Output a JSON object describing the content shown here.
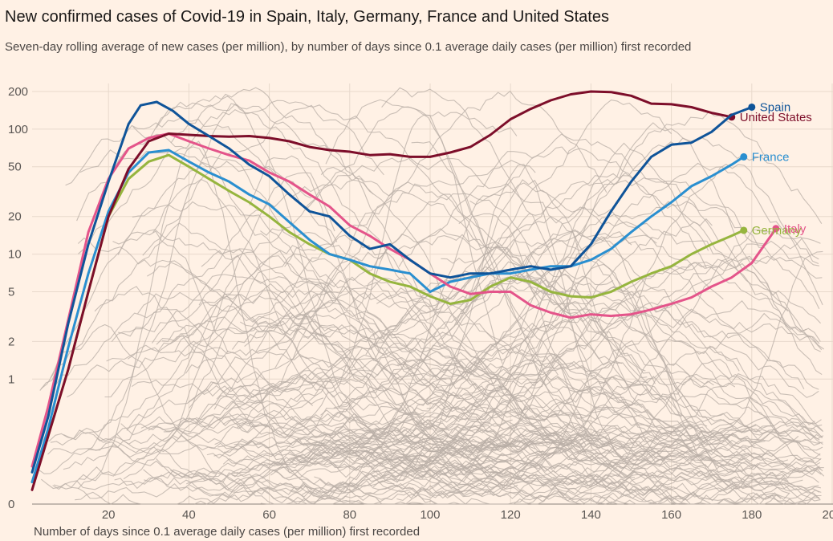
{
  "title": "New confirmed cases of Covid-19 in Spain, Italy, Germany, France and United States",
  "subtitle": "Seven-day rolling average of new cases (per million), by number of days since 0.1 average daily cases (per million) first recorded",
  "chart_data": {
    "type": "line",
    "title": "New confirmed cases of Covid-19 in Spain, Italy, Germany, France and United States",
    "subtitle": "Seven-day rolling average of new cases (per million), by number of days since 0.1 average daily cases (per million) first recorded",
    "xlabel": "Number of days since 0.1 average daily cases (per million) first recorded",
    "ylabel": "",
    "y_scale": "log",
    "xlim": [
      1,
      200
    ],
    "ylim": [
      0.1,
      200
    ],
    "x_ticks": [
      20,
      40,
      60,
      80,
      100,
      120,
      140,
      160,
      180,
      200
    ],
    "x_tick_labels": [
      "20",
      "40",
      "60",
      "80",
      "100",
      "120",
      "140",
      "160",
      "180",
      "200"
    ],
    "y_ticks": [
      0.1,
      1,
      2,
      5,
      10,
      20,
      50,
      100,
      200
    ],
    "y_tick_labels": [
      "0",
      "1",
      "2",
      "5",
      "10",
      "20",
      "50",
      "100",
      "200"
    ],
    "grid": true,
    "background_series_color": "#b8ada5",
    "series": [
      {
        "name": "Spain",
        "color": "#0f5499",
        "x": [
          1,
          5,
          10,
          15,
          20,
          25,
          28,
          32,
          36,
          40,
          45,
          50,
          55,
          60,
          65,
          70,
          75,
          80,
          85,
          90,
          95,
          100,
          105,
          110,
          115,
          120,
          125,
          130,
          135,
          140,
          145,
          150,
          155,
          160,
          165,
          170,
          175,
          180
        ],
        "y": [
          0.18,
          0.5,
          2.8,
          12,
          38,
          110,
          155,
          165,
          140,
          110,
          88,
          70,
          52,
          42,
          30,
          22,
          20,
          14,
          11,
          12,
          9,
          7,
          6.5,
          7,
          7,
          7.5,
          8,
          7.5,
          8,
          12,
          22,
          38,
          60,
          75,
          78,
          95,
          130,
          150
        ]
      },
      {
        "name": "United States",
        "color": "#7d0e2a",
        "x": [
          1,
          5,
          10,
          15,
          20,
          25,
          30,
          35,
          40,
          45,
          50,
          55,
          60,
          65,
          70,
          75,
          80,
          85,
          90,
          95,
          100,
          105,
          110,
          115,
          120,
          125,
          130,
          135,
          140,
          145,
          150,
          155,
          160,
          165,
          170,
          175
        ],
        "y": [
          0.13,
          0.35,
          1.2,
          5,
          20,
          48,
          80,
          92,
          90,
          88,
          87,
          88,
          85,
          80,
          72,
          68,
          66,
          62,
          63,
          60,
          60,
          65,
          72,
          90,
          120,
          145,
          170,
          190,
          200,
          198,
          185,
          160,
          158,
          150,
          135,
          125
        ]
      },
      {
        "name": "France",
        "color": "#2a8fd0",
        "x": [
          1,
          5,
          10,
          15,
          20,
          25,
          30,
          35,
          40,
          45,
          50,
          55,
          60,
          65,
          70,
          75,
          80,
          85,
          90,
          95,
          100,
          105,
          110,
          115,
          120,
          125,
          130,
          135,
          140,
          145,
          150,
          155,
          160,
          165,
          170,
          175,
          178
        ],
        "y": [
          0.15,
          0.4,
          1.8,
          7,
          22,
          45,
          65,
          68,
          55,
          45,
          38,
          30,
          25,
          18,
          13,
          10,
          9,
          8,
          7.5,
          7,
          5,
          6,
          6.5,
          7,
          7,
          7.5,
          8,
          8,
          9,
          11,
          15,
          20,
          26,
          35,
          42,
          52,
          60
        ]
      },
      {
        "name": "Germany",
        "color": "#96b53e",
        "x": [
          1,
          5,
          10,
          15,
          20,
          25,
          30,
          35,
          40,
          45,
          50,
          55,
          60,
          65,
          70,
          75,
          80,
          85,
          90,
          95,
          100,
          105,
          110,
          115,
          120,
          125,
          130,
          135,
          140,
          145,
          150,
          155,
          160,
          165,
          170,
          175,
          178
        ],
        "y": [
          0.15,
          0.35,
          1.2,
          5,
          20,
          40,
          55,
          62,
          50,
          40,
          32,
          26,
          20,
          15,
          12,
          10,
          9,
          7,
          6,
          5.5,
          4.6,
          4,
          4.3,
          5.5,
          6.5,
          6,
          5,
          4.6,
          4.5,
          5,
          6,
          7,
          8,
          10,
          12,
          14,
          15.5
        ]
      },
      {
        "name": "Italy",
        "color": "#e4548a",
        "x": [
          1,
          5,
          10,
          15,
          20,
          25,
          30,
          35,
          40,
          45,
          50,
          55,
          60,
          65,
          70,
          75,
          80,
          85,
          90,
          95,
          100,
          105,
          110,
          115,
          120,
          125,
          130,
          135,
          140,
          145,
          150,
          155,
          160,
          165,
          170,
          175,
          180,
          186
        ],
        "y": [
          0.2,
          0.6,
          3,
          15,
          40,
          70,
          85,
          92,
          80,
          70,
          62,
          56,
          45,
          38,
          30,
          24,
          17,
          14,
          11,
          9,
          7,
          5.5,
          4.8,
          5,
          5,
          3.9,
          3.4,
          3.1,
          3.3,
          3.2,
          3.3,
          3.6,
          4,
          4.5,
          5.5,
          6.5,
          8.5,
          16
        ]
      }
    ],
    "series_labels": [
      {
        "series": "Spain",
        "text": "Spain"
      },
      {
        "series": "United States",
        "text": "United States"
      },
      {
        "series": "France",
        "text": "France"
      },
      {
        "series": "Germany",
        "text": "Germany"
      },
      {
        "series": "Italy",
        "text": "Italy"
      }
    ]
  }
}
